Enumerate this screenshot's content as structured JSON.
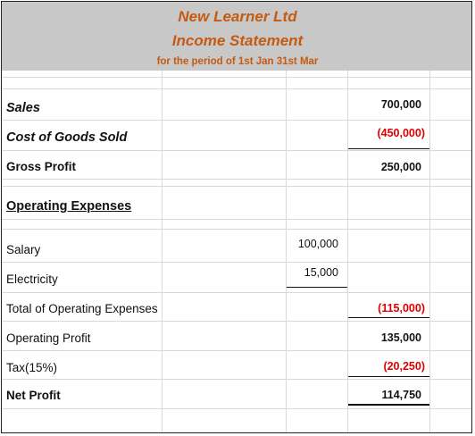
{
  "header": {
    "company": "New Learner Ltd",
    "title": "Income Statement",
    "period": "for the period of 1st Jan 31st Mar"
  },
  "rows": {
    "sales": {
      "label": "Sales",
      "total": "700,000"
    },
    "cogs": {
      "label": "Cost of Goods Sold",
      "total": "(450,000)"
    },
    "gross_profit": {
      "label": "Gross Profit",
      "total": "250,000"
    },
    "opex_heading": {
      "label": "Operating Expenses"
    },
    "salary": {
      "label": "Salary",
      "amount": "100,000"
    },
    "electricity": {
      "label": "Electricity",
      "amount": "15,000"
    },
    "total_opex": {
      "label": "Total of Operating Expenses",
      "total": "(115,000)"
    },
    "operating_profit": {
      "label": "Operating Profit",
      "total": "135,000"
    },
    "tax": {
      "label": "Tax(15%)",
      "total": "(20,250)"
    },
    "net_profit": {
      "label": "Net Profit",
      "total": "114,750"
    }
  },
  "colors": {
    "header_fill": "#c8c8c8",
    "header_text": "#c55a11",
    "negative": "#e00000"
  }
}
